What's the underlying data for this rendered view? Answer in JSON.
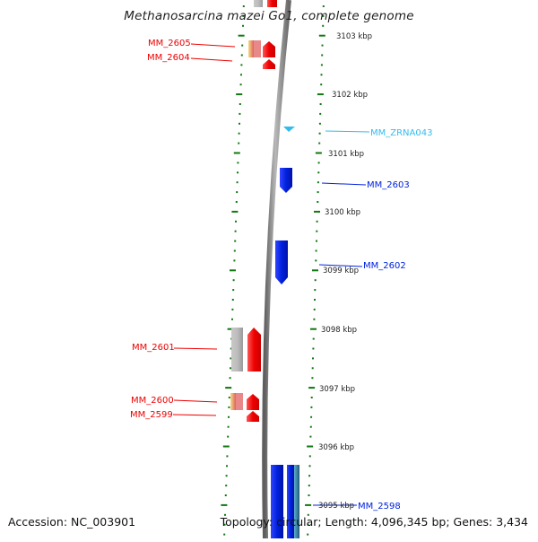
{
  "title": "Methanosarcina mazei Go1, complete genome",
  "accession": "Accession: NC_003901",
  "summary": "Topology: circular; Length: 4,096,345 bp; Genes: 3,434",
  "colors": {
    "forward_gene": "#ee0000",
    "reverse_gene": "#0022dd",
    "rna_gene": "#33bbee",
    "tick": "#117711",
    "backbone": "#8a8a8a",
    "scale_label": "#222222"
  },
  "scale_ticks": [
    {
      "label": "3103 kbp"
    },
    {
      "label": "3102 kbp"
    },
    {
      "label": "3101 kbp"
    },
    {
      "label": "3100 kbp"
    },
    {
      "label": "3099 kbp"
    },
    {
      "label": "3098 kbp"
    },
    {
      "label": "3097 kbp"
    },
    {
      "label": "3096 kbp"
    },
    {
      "label": "3095 kbp"
    }
  ],
  "gene_labels": [
    {
      "name": "MM_2605",
      "strand": "forward"
    },
    {
      "name": "MM_2604",
      "strand": "forward"
    },
    {
      "name": "MM_ZRNA043",
      "strand": "rna"
    },
    {
      "name": "MM_2603",
      "strand": "reverse"
    },
    {
      "name": "MM_2602",
      "strand": "reverse"
    },
    {
      "name": "MM_2601",
      "strand": "forward"
    },
    {
      "name": "MM_2600",
      "strand": "forward"
    },
    {
      "name": "MM_2599",
      "strand": "forward"
    },
    {
      "name": "MM_2598",
      "strand": "reverse"
    }
  ]
}
